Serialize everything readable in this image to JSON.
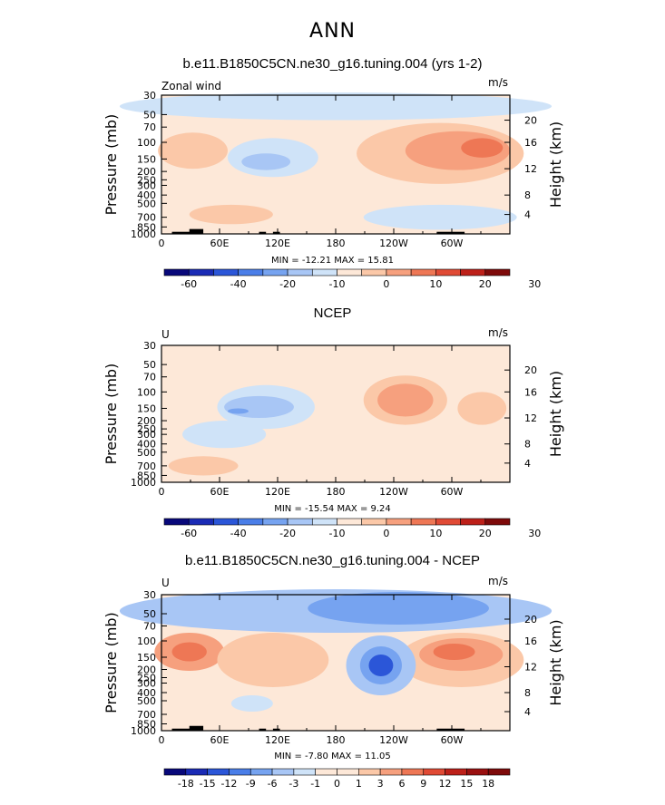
{
  "page_title": "ANN",
  "colors": {
    "fill_bg": "#fde8d8",
    "land": "#000000"
  },
  "chart_data": [
    {
      "type": "heatmap",
      "id": "model",
      "title": "b.e11.B1850C5CN.ne30_g16.tuning.004 (yrs 1-2)",
      "left_label": "Zonal wind",
      "units": "m/s",
      "xlabel": "",
      "ylabel": "Pressure (mb)",
      "ylabel_right": "Height (km)",
      "x_ticks": [
        "0",
        "60E",
        "120E",
        "180",
        "120W",
        "60W"
      ],
      "y_ticks": [
        "30",
        "50",
        "70",
        "100",
        "150",
        "200",
        "250",
        "300",
        "400",
        "500",
        "700",
        "850",
        "1000"
      ],
      "height_ticks": [
        "20",
        "16",
        "12",
        "8",
        "4"
      ],
      "stats_text": "MIN = -12.21   MAX = 15.81",
      "min": -12.21,
      "max": 15.81,
      "colorbar_labels": [
        "-60",
        "-40",
        "-20",
        "-10",
        "0",
        "10",
        "20",
        "30"
      ],
      "colorbar_colors": [
        "#08087a",
        "#1a2bb5",
        "#2b56d8",
        "#4a7ee8",
        "#76a3f0",
        "#a8c6f5",
        "#cfe3f8",
        "#fde8d8",
        "#fbc8a8",
        "#f6a07e",
        "#ee7755",
        "#e04a35",
        "#bd2019",
        "#7e0a0a"
      ]
    },
    {
      "type": "heatmap",
      "id": "ncep",
      "title": "NCEP",
      "left_label": "U",
      "units": "m/s",
      "xlabel": "",
      "ylabel": "Pressure (mb)",
      "ylabel_right": "Height (km)",
      "x_ticks": [
        "0",
        "60E",
        "120E",
        "180",
        "120W",
        "60W"
      ],
      "y_ticks": [
        "30",
        "50",
        "70",
        "100",
        "150",
        "200",
        "250",
        "300",
        "400",
        "500",
        "700",
        "850",
        "1000"
      ],
      "height_ticks": [
        "20",
        "16",
        "12",
        "8",
        "4"
      ],
      "stats_text": "MIN = -15.54   MAX =  9.24",
      "min": -15.54,
      "max": 9.24,
      "colorbar_labels": [
        "-60",
        "-40",
        "-20",
        "-10",
        "0",
        "10",
        "20",
        "30"
      ],
      "colorbar_colors": [
        "#08087a",
        "#1a2bb5",
        "#2b56d8",
        "#4a7ee8",
        "#76a3f0",
        "#a8c6f5",
        "#cfe3f8",
        "#fde8d8",
        "#fbc8a8",
        "#f6a07e",
        "#ee7755",
        "#e04a35",
        "#bd2019",
        "#7e0a0a"
      ]
    },
    {
      "type": "heatmap",
      "id": "diff",
      "title": "b.e11.B1850C5CN.ne30_g16.tuning.004 - NCEP",
      "left_label": "U",
      "units": "m/s",
      "xlabel": "",
      "ylabel": "Pressure (mb)",
      "ylabel_right": "Height (km)",
      "x_ticks": [
        "0",
        "60E",
        "120E",
        "180",
        "120W",
        "60W"
      ],
      "y_ticks": [
        "30",
        "50",
        "70",
        "100",
        "150",
        "200",
        "250",
        "300",
        "400",
        "500",
        "700",
        "850",
        "1000"
      ],
      "height_ticks": [
        "20",
        "16",
        "12",
        "8",
        "4"
      ],
      "stats_text": "MIN = -7.80   MAX = 11.05",
      "min": -7.8,
      "max": 11.05,
      "colorbar_labels": [
        "-18",
        "-15",
        "-12",
        "-9",
        "-6",
        "-3",
        "-1",
        "0",
        "1",
        "3",
        "6",
        "9",
        "12",
        "15",
        "18"
      ],
      "colorbar_colors": [
        "#08087a",
        "#1a2bb5",
        "#2b56d8",
        "#4a7ee8",
        "#76a3f0",
        "#a8c6f5",
        "#cfe3f8",
        "#fde8d8",
        "#fde8d8",
        "#fbc8a8",
        "#f6a07e",
        "#ee7755",
        "#e04a35",
        "#bd2019",
        "#9a1010",
        "#7e0a0a"
      ]
    }
  ]
}
